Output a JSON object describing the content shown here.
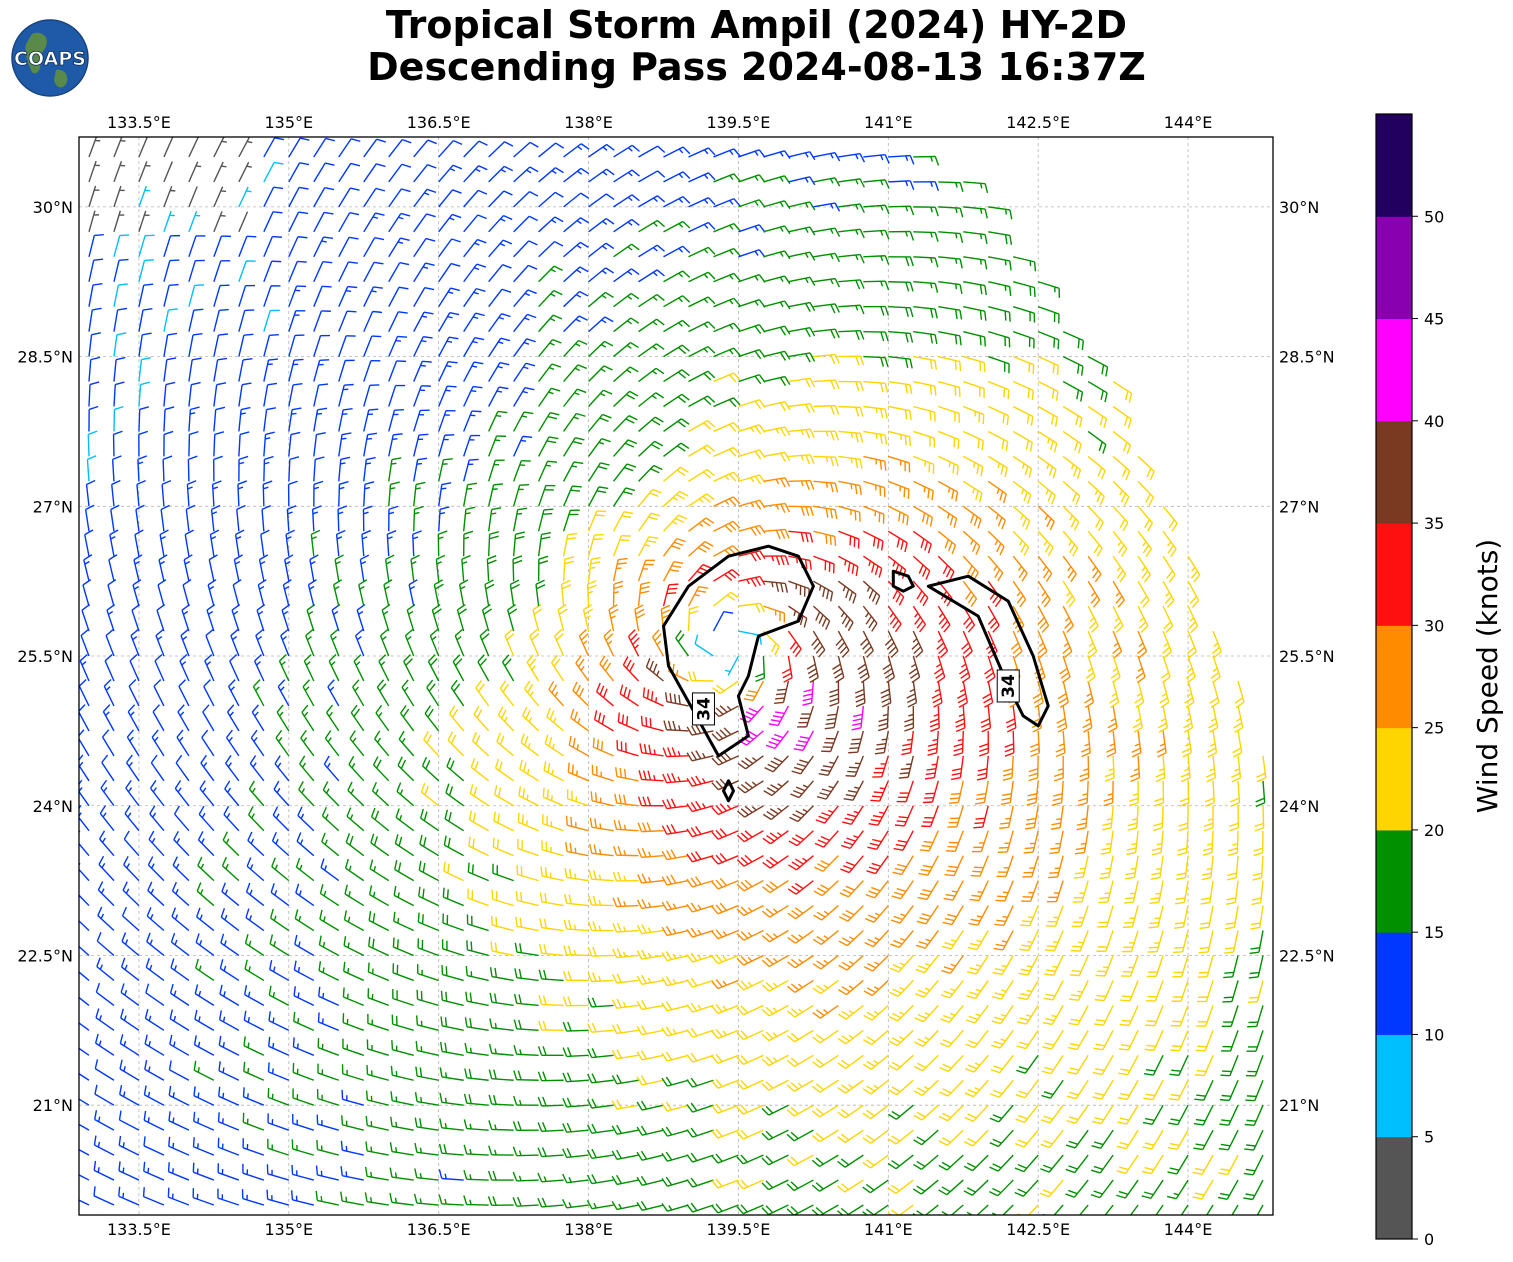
{
  "logo": {
    "text": "COAPS"
  },
  "title": {
    "line1": "Tropical Storm Ampil (2024) HY-2D",
    "line2": "Descending Pass 2024-08-13 16:37Z"
  },
  "chart_data": {
    "type": "wind-barb-map",
    "title": "Tropical Storm Ampil (2024) HY-2D Descending Pass 2024-08-13 16:37Z",
    "xlim": [
      132.9,
      144.85
    ],
    "ylim": [
      19.9,
      30.7
    ],
    "x_ticks": [
      133.5,
      135,
      136.5,
      138,
      139.5,
      141,
      142.5,
      144
    ],
    "x_tick_labels": [
      "133.5°E",
      "135°E",
      "136.5°E",
      "138°E",
      "139.5°E",
      "141°E",
      "142.5°E",
      "144°E"
    ],
    "y_ticks": [
      21,
      22.5,
      24,
      25.5,
      27,
      28.5,
      30
    ],
    "y_tick_labels": [
      "21°N",
      "22.5°N",
      "24°N",
      "25.5°N",
      "27°N",
      "28.5°N",
      "30°N"
    ],
    "grid": true,
    "storm_center": {
      "lon": 139.4,
      "lat": 25.6
    },
    "contour_label": "34",
    "contour_34kt": [
      {
        "label_at": [
          139.15,
          24.97
        ],
        "points": [
          [
            139.3,
            24.5
          ],
          [
            139.05,
            24.95
          ],
          [
            138.8,
            25.4
          ],
          [
            138.75,
            25.8
          ],
          [
            139.0,
            26.2
          ],
          [
            139.4,
            26.5
          ],
          [
            139.8,
            26.6
          ],
          [
            140.1,
            26.5
          ],
          [
            140.25,
            26.2
          ],
          [
            140.1,
            25.85
          ],
          [
            139.7,
            25.7
          ],
          [
            139.6,
            25.3
          ],
          [
            139.5,
            25.1
          ],
          [
            139.6,
            24.7
          ],
          [
            139.3,
            24.5
          ]
        ]
      },
      {
        "label_at": [
          142.2,
          25.2
        ],
        "points": [
          [
            141.4,
            26.2
          ],
          [
            141.8,
            26.3
          ],
          [
            142.2,
            26.05
          ],
          [
            142.45,
            25.5
          ],
          [
            142.6,
            25.0
          ],
          [
            142.5,
            24.8
          ],
          [
            142.35,
            24.9
          ],
          [
            142.2,
            25.2
          ],
          [
            141.9,
            25.9
          ],
          [
            141.4,
            26.2
          ]
        ]
      },
      {
        "label_at": null,
        "points": [
          [
            141.05,
            26.35
          ],
          [
            141.2,
            26.3
          ],
          [
            141.25,
            26.2
          ],
          [
            141.15,
            26.15
          ],
          [
            141.05,
            26.2
          ],
          [
            141.05,
            26.35
          ]
        ]
      },
      {
        "label_at": null,
        "points": [
          [
            139.4,
            24.25
          ],
          [
            139.45,
            24.15
          ],
          [
            139.4,
            24.05
          ],
          [
            139.35,
            24.15
          ],
          [
            139.4,
            24.25
          ]
        ]
      }
    ],
    "swath_edge": [
      [
        141.2,
        30.7
      ],
      [
        141.95,
        30.1
      ],
      [
        142.3,
        29.6
      ],
      [
        142.6,
        29.1
      ],
      [
        143.05,
        28.7
      ],
      [
        143.35,
        28.1
      ],
      [
        143.6,
        27.5
      ],
      [
        143.85,
        26.9
      ],
      [
        144.0,
        26.5
      ],
      [
        144.1,
        26.1
      ],
      [
        144.4,
        25.6
      ],
      [
        144.6,
        25.0
      ],
      [
        144.85,
        24.4
      ]
    ],
    "colorbar": {
      "label": "Wind Speed (knots)",
      "tick_labels": [
        "0",
        "5",
        "10",
        "15",
        "20",
        "25",
        "30",
        "35",
        "40",
        "45",
        "50"
      ],
      "bins": [
        {
          "min": 0,
          "max": 5,
          "color": "#555555"
        },
        {
          "min": 5,
          "max": 10,
          "color": "#00bfff"
        },
        {
          "min": 10,
          "max": 15,
          "color": "#0038ff"
        },
        {
          "min": 15,
          "max": 20,
          "color": "#009000"
        },
        {
          "min": 20,
          "max": 25,
          "color": "#ffd500"
        },
        {
          "min": 25,
          "max": 30,
          "color": "#ff8c00"
        },
        {
          "min": 30,
          "max": 35,
          "color": "#ff1010"
        },
        {
          "min": 35,
          "max": 40,
          "color": "#7a3a22"
        },
        {
          "min": 40,
          "max": 45,
          "color": "#ff00ff"
        },
        {
          "min": 45,
          "max": 50,
          "color": "#8800b0"
        },
        {
          "min": 50,
          "max": 55,
          "color": "#220060"
        }
      ]
    },
    "wind_field_model": {
      "grid_spacing_deg": 0.25,
      "rmw_deg": 0.7,
      "vmax_knots": 37,
      "far_knots": 13,
      "decay_deg": 5,
      "asymmetry": 0.3,
      "inflow_deg": 20
    }
  }
}
